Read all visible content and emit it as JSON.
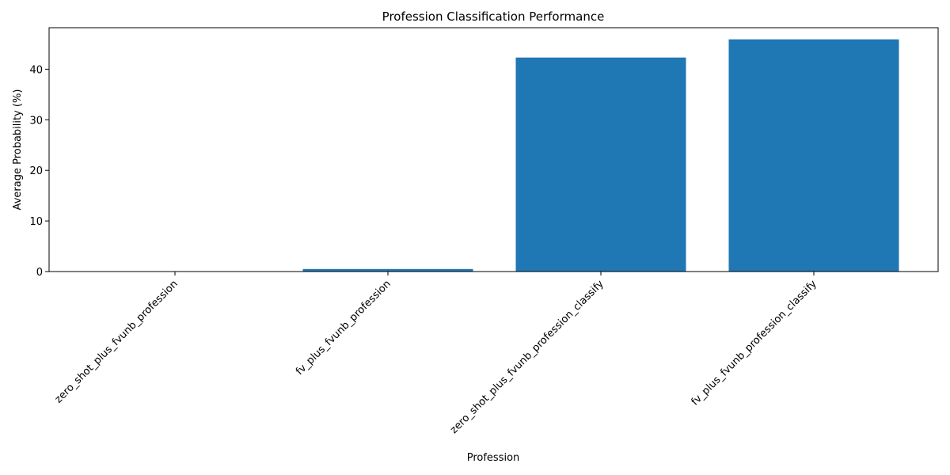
{
  "chart_data": {
    "type": "bar",
    "title": "Profession Classification Performance",
    "xlabel": "Profession",
    "ylabel": "Average Probability (%)",
    "categories": [
      "zero_shot_plus_fvunb_profession",
      "fv_plus_fvunb_profession",
      "zero_shot_plus_fvunb_profession_classify",
      "fv_plus_fvunb_profession_classify"
    ],
    "values": [
      0.0,
      0.5,
      42.3,
      45.9
    ],
    "ylim": [
      0,
      48.2
    ],
    "yticks": [
      0,
      10,
      20,
      30,
      40
    ],
    "grid": false,
    "bar_color": "#1f77b4"
  }
}
